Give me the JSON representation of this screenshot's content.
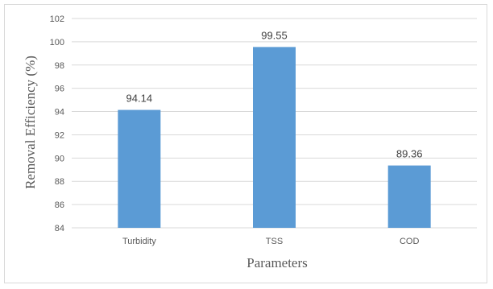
{
  "chart_data": {
    "type": "bar",
    "categories": [
      "Turbidity",
      "TSS",
      "COD"
    ],
    "values": [
      94.14,
      99.55,
      89.36
    ],
    "data_labels": [
      "94.14",
      "99.55",
      "89.36"
    ],
    "title": "",
    "xlabel": "Parameters",
    "ylabel": "Removal Efficiency (%)",
    "ylim": [
      84,
      102
    ],
    "yticks": [
      84,
      86,
      88,
      90,
      92,
      94,
      96,
      98,
      100,
      102
    ],
    "grid": true,
    "legend": "none",
    "bar_color": "#5b9bd5",
    "grid_color": "#d9d9d9"
  }
}
